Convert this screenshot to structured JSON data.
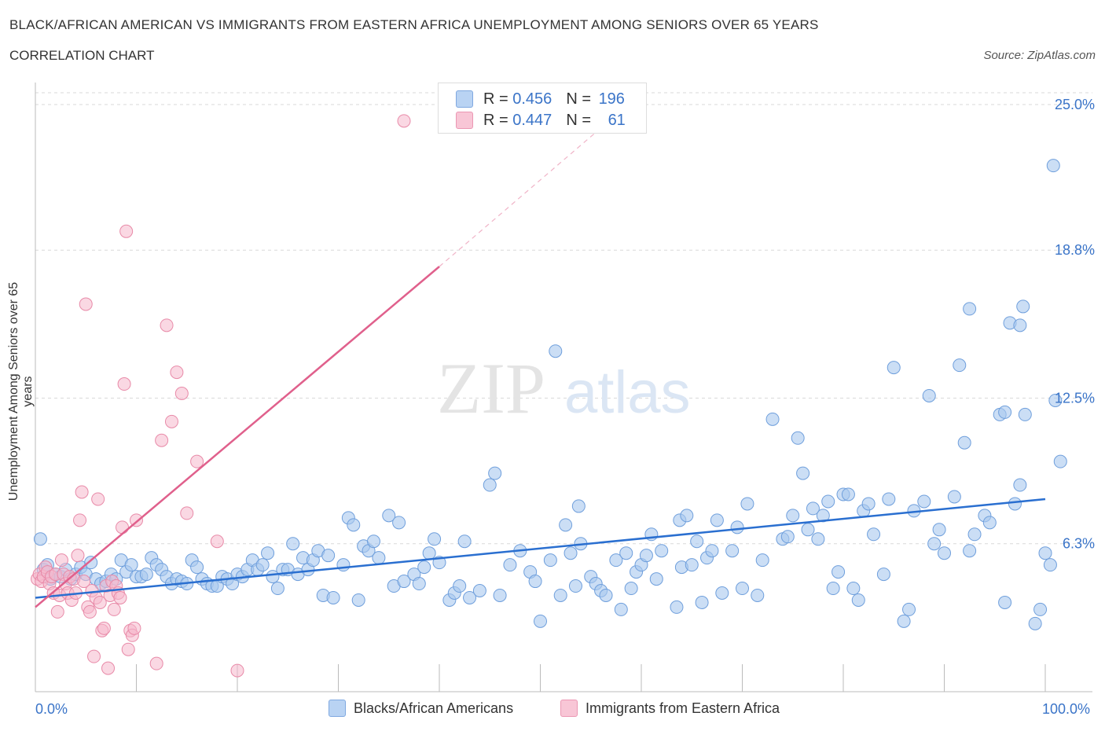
{
  "header": {
    "title": "BLACK/AFRICAN AMERICAN VS IMMIGRANTS FROM EASTERN AFRICA UNEMPLOYMENT AMONG SENIORS OVER 65 YEARS",
    "subtitle": "CORRELATION CHART",
    "source": "Source: ZipAtlas.com"
  },
  "legend": {
    "rows": [
      {
        "r_label": "R = ",
        "r_value": "0.456",
        "n_label": "N = ",
        "n_value": "196"
      },
      {
        "r_label": "R = ",
        "r_value": "0.447",
        "n_label": "N = ",
        "n_value": "61"
      }
    ],
    "bottom": [
      "Blacks/African Americans",
      "Immigrants from Eastern Africa"
    ]
  },
  "colors": {
    "blue_fill": "#a9c8ef",
    "blue_stroke": "#6f9fdc",
    "blue_line": "#2a6fd0",
    "pink_fill": "#f6b8cc",
    "pink_stroke": "#e88aa8",
    "pink_line": "#e0608c",
    "tick_label": "#3a74c8"
  },
  "chart_data": {
    "type": "scatter",
    "title": "BLACK/AFRICAN AMERICAN VS IMMIGRANTS FROM EASTERN AFRICA UNEMPLOYMENT AMONG SENIORS OVER 65 YEARS",
    "xlabel": "",
    "ylabel": "Unemployment Among Seniors over 65 years",
    "xlim": [
      0,
      100
    ],
    "ylim": [
      0,
      25.5
    ],
    "x_tick_labels": [
      "0.0%",
      "100.0%"
    ],
    "y_ticks": [
      6.3,
      12.5,
      18.8,
      25.0
    ],
    "y_tick_labels": [
      "6.3%",
      "12.5%",
      "18.8%",
      "25.0%"
    ],
    "watermark": "ZIPatlas",
    "series": [
      {
        "name": "Blacks/African Americans",
        "color": "#a9c8ef",
        "trend": {
          "x": [
            0,
            100
          ],
          "y": [
            4.0,
            8.2
          ]
        },
        "points": [
          [
            0.5,
            6.5
          ],
          [
            0.8,
            5.2
          ],
          [
            1.2,
            5.4
          ],
          [
            1.5,
            4.8
          ],
          [
            2.0,
            5.0
          ],
          [
            2.5,
            4.9
          ],
          [
            3.0,
            5.2
          ],
          [
            3.5,
            4.8
          ],
          [
            4.0,
            5.0
          ],
          [
            4.5,
            5.3
          ],
          [
            5.0,
            5.0
          ],
          [
            5.5,
            5.5
          ],
          [
            6.0,
            4.8
          ],
          [
            6.5,
            4.6
          ],
          [
            7.0,
            4.7
          ],
          [
            7.5,
            5.0
          ],
          [
            8.0,
            4.8
          ],
          [
            8.5,
            5.6
          ],
          [
            9.0,
            5.1
          ],
          [
            9.5,
            5.4
          ],
          [
            10.0,
            4.9
          ],
          [
            10.5,
            4.9
          ],
          [
            11.0,
            5.0
          ],
          [
            11.5,
            5.7
          ],
          [
            12.0,
            5.4
          ],
          [
            12.5,
            5.2
          ],
          [
            13.0,
            4.9
          ],
          [
            13.5,
            4.6
          ],
          [
            14.0,
            4.8
          ],
          [
            14.5,
            4.7
          ],
          [
            15.0,
            4.6
          ],
          [
            15.5,
            5.6
          ],
          [
            16.0,
            5.3
          ],
          [
            16.5,
            4.8
          ],
          [
            17.0,
            4.6
          ],
          [
            17.5,
            4.5
          ],
          [
            18.0,
            4.5
          ],
          [
            18.5,
            4.9
          ],
          [
            19.0,
            4.8
          ],
          [
            19.5,
            4.6
          ],
          [
            20.0,
            5.0
          ],
          [
            20.5,
            4.9
          ],
          [
            21.0,
            5.2
          ],
          [
            21.5,
            5.6
          ],
          [
            22.0,
            5.2
          ],
          [
            22.5,
            5.4
          ],
          [
            23.0,
            5.9
          ],
          [
            23.5,
            4.9
          ],
          [
            24.0,
            4.4
          ],
          [
            24.5,
            5.2
          ],
          [
            25.0,
            5.2
          ],
          [
            25.5,
            6.3
          ],
          [
            26.0,
            5.0
          ],
          [
            26.5,
            5.7
          ],
          [
            27.0,
            5.2
          ],
          [
            27.5,
            5.6
          ],
          [
            28.0,
            6.0
          ],
          [
            28.5,
            4.1
          ],
          [
            29.0,
            5.8
          ],
          [
            29.5,
            4.0
          ],
          [
            30.5,
            5.4
          ],
          [
            31.0,
            7.4
          ],
          [
            31.5,
            7.1
          ],
          [
            32.0,
            3.9
          ],
          [
            32.5,
            6.2
          ],
          [
            33.0,
            6.0
          ],
          [
            33.5,
            6.4
          ],
          [
            34.0,
            5.7
          ],
          [
            35.0,
            7.5
          ],
          [
            35.5,
            4.5
          ],
          [
            36.0,
            7.2
          ],
          [
            36.5,
            4.7
          ],
          [
            37.5,
            5.0
          ],
          [
            38.0,
            4.6
          ],
          [
            38.5,
            5.3
          ],
          [
            39.0,
            5.9
          ],
          [
            39.5,
            6.5
          ],
          [
            40.0,
            5.5
          ],
          [
            41.0,
            3.9
          ],
          [
            41.5,
            4.2
          ],
          [
            42.0,
            4.5
          ],
          [
            42.5,
            6.4
          ],
          [
            43.0,
            4.0
          ],
          [
            44.0,
            4.3
          ],
          [
            45.0,
            8.8
          ],
          [
            45.5,
            9.3
          ],
          [
            46.0,
            4.1
          ],
          [
            47.0,
            5.4
          ],
          [
            48.0,
            6.0
          ],
          [
            49.0,
            5.1
          ],
          [
            49.5,
            4.7
          ],
          [
            50.0,
            3.0
          ],
          [
            51.0,
            5.6
          ],
          [
            51.5,
            14.5
          ],
          [
            52.0,
            4.1
          ],
          [
            52.5,
            7.1
          ],
          [
            53.0,
            5.9
          ],
          [
            53.5,
            4.5
          ],
          [
            53.8,
            7.9
          ],
          [
            54.0,
            6.3
          ],
          [
            55.0,
            4.9
          ],
          [
            55.5,
            4.6
          ],
          [
            56.0,
            4.3
          ],
          [
            56.5,
            4.1
          ],
          [
            57.5,
            5.6
          ],
          [
            58.0,
            3.5
          ],
          [
            58.5,
            5.9
          ],
          [
            59.0,
            4.4
          ],
          [
            59.5,
            5.1
          ],
          [
            60.0,
            5.4
          ],
          [
            60.5,
            5.8
          ],
          [
            61.0,
            6.7
          ],
          [
            61.5,
            4.8
          ],
          [
            62.0,
            6.0
          ],
          [
            63.5,
            3.6
          ],
          [
            63.8,
            7.3
          ],
          [
            64.0,
            5.3
          ],
          [
            64.5,
            7.5
          ],
          [
            65.0,
            5.4
          ],
          [
            65.5,
            6.4
          ],
          [
            66.0,
            3.8
          ],
          [
            66.5,
            5.7
          ],
          [
            67.0,
            6.0
          ],
          [
            67.5,
            7.3
          ],
          [
            68.0,
            4.2
          ],
          [
            69.0,
            6.0
          ],
          [
            69.5,
            7.0
          ],
          [
            70.0,
            4.4
          ],
          [
            70.5,
            8.0
          ],
          [
            71.5,
            4.1
          ],
          [
            72.0,
            5.6
          ],
          [
            73.0,
            11.6
          ],
          [
            74.0,
            6.5
          ],
          [
            74.5,
            6.6
          ],
          [
            75.0,
            7.5
          ],
          [
            75.5,
            10.8
          ],
          [
            76.0,
            9.3
          ],
          [
            76.5,
            6.9
          ],
          [
            77.0,
            7.8
          ],
          [
            77.5,
            6.5
          ],
          [
            78.0,
            7.5
          ],
          [
            78.5,
            8.1
          ],
          [
            79.0,
            4.4
          ],
          [
            79.5,
            5.1
          ],
          [
            80.0,
            8.4
          ],
          [
            80.5,
            8.4
          ],
          [
            81.0,
            4.4
          ],
          [
            81.5,
            3.9
          ],
          [
            82.0,
            7.7
          ],
          [
            82.5,
            8.0
          ],
          [
            83.0,
            6.7
          ],
          [
            84.0,
            5.0
          ],
          [
            84.5,
            8.2
          ],
          [
            85.0,
            13.8
          ],
          [
            86.0,
            3.0
          ],
          [
            86.5,
            3.5
          ],
          [
            87.0,
            7.7
          ],
          [
            88.0,
            8.1
          ],
          [
            88.5,
            12.6
          ],
          [
            89.0,
            6.3
          ],
          [
            89.5,
            6.9
          ],
          [
            90.0,
            5.9
          ],
          [
            91.0,
            8.3
          ],
          [
            91.5,
            13.9
          ],
          [
            92.0,
            10.6
          ],
          [
            92.5,
            6.0
          ],
          [
            93.0,
            6.7
          ],
          [
            94.0,
            7.5
          ],
          [
            94.5,
            7.2
          ],
          [
            95.5,
            11.8
          ],
          [
            96.0,
            3.8
          ],
          [
            96.5,
            15.7
          ],
          [
            97.0,
            8.0
          ],
          [
            97.5,
            8.8
          ],
          [
            98.0,
            11.8
          ],
          [
            99.0,
            2.9
          ],
          [
            99.5,
            3.5
          ],
          [
            100.0,
            5.9
          ],
          [
            100.5,
            5.4
          ],
          [
            101.0,
            12.4
          ],
          [
            101.5,
            9.8
          ],
          [
            97.8,
            16.4
          ],
          [
            97.5,
            15.6
          ],
          [
            100.8,
            22.4
          ],
          [
            92.5,
            16.3
          ],
          [
            96.0,
            11.9
          ]
        ]
      },
      {
        "name": "Immigrants from Eastern Africa",
        "color": "#f6b8cc",
        "trend": {
          "x": [
            0,
            40
          ],
          "y": [
            3.6,
            18.1
          ]
        },
        "trend_dashed": {
          "x": [
            40,
            56
          ],
          "y": [
            18.1,
            24.0
          ]
        },
        "points": [
          [
            0.2,
            4.8
          ],
          [
            0.4,
            5.0
          ],
          [
            0.6,
            4.7
          ],
          [
            0.8,
            4.9
          ],
          [
            1.0,
            5.3
          ],
          [
            1.2,
            5.1
          ],
          [
            1.4,
            4.6
          ],
          [
            1.6,
            4.9
          ],
          [
            1.8,
            4.2
          ],
          [
            2.0,
            5.0
          ],
          [
            2.2,
            3.4
          ],
          [
            2.4,
            4.1
          ],
          [
            2.6,
            5.6
          ],
          [
            2.8,
            5.0
          ],
          [
            3.0,
            4.6
          ],
          [
            3.2,
            4.2
          ],
          [
            3.4,
            4.9
          ],
          [
            3.6,
            3.9
          ],
          [
            3.8,
            4.8
          ],
          [
            4.0,
            4.2
          ],
          [
            4.2,
            5.8
          ],
          [
            4.4,
            7.3
          ],
          [
            4.6,
            8.5
          ],
          [
            4.8,
            4.7
          ],
          [
            5.0,
            16.5
          ],
          [
            5.2,
            3.6
          ],
          [
            5.4,
            3.4
          ],
          [
            5.6,
            4.3
          ],
          [
            5.8,
            1.5
          ],
          [
            6.0,
            4.0
          ],
          [
            6.2,
            8.2
          ],
          [
            6.4,
            3.8
          ],
          [
            6.6,
            2.6
          ],
          [
            6.8,
            2.7
          ],
          [
            7.0,
            4.5
          ],
          [
            7.2,
            1.0
          ],
          [
            7.4,
            4.1
          ],
          [
            7.6,
            4.7
          ],
          [
            7.8,
            3.5
          ],
          [
            8.0,
            4.5
          ],
          [
            8.2,
            4.2
          ],
          [
            8.4,
            4.0
          ],
          [
            8.6,
            7.0
          ],
          [
            8.8,
            13.1
          ],
          [
            9.0,
            19.6
          ],
          [
            9.2,
            1.8
          ],
          [
            9.4,
            2.6
          ],
          [
            9.6,
            2.4
          ],
          [
            9.8,
            2.7
          ],
          [
            10.0,
            7.3
          ],
          [
            12.0,
            1.2
          ],
          [
            12.5,
            10.7
          ],
          [
            13.0,
            15.6
          ],
          [
            13.5,
            11.5
          ],
          [
            14.0,
            13.6
          ],
          [
            14.5,
            12.7
          ],
          [
            15.0,
            7.6
          ],
          [
            16.0,
            9.8
          ],
          [
            18.0,
            6.4
          ],
          [
            20.0,
            0.9
          ],
          [
            36.5,
            24.3
          ]
        ]
      }
    ]
  }
}
